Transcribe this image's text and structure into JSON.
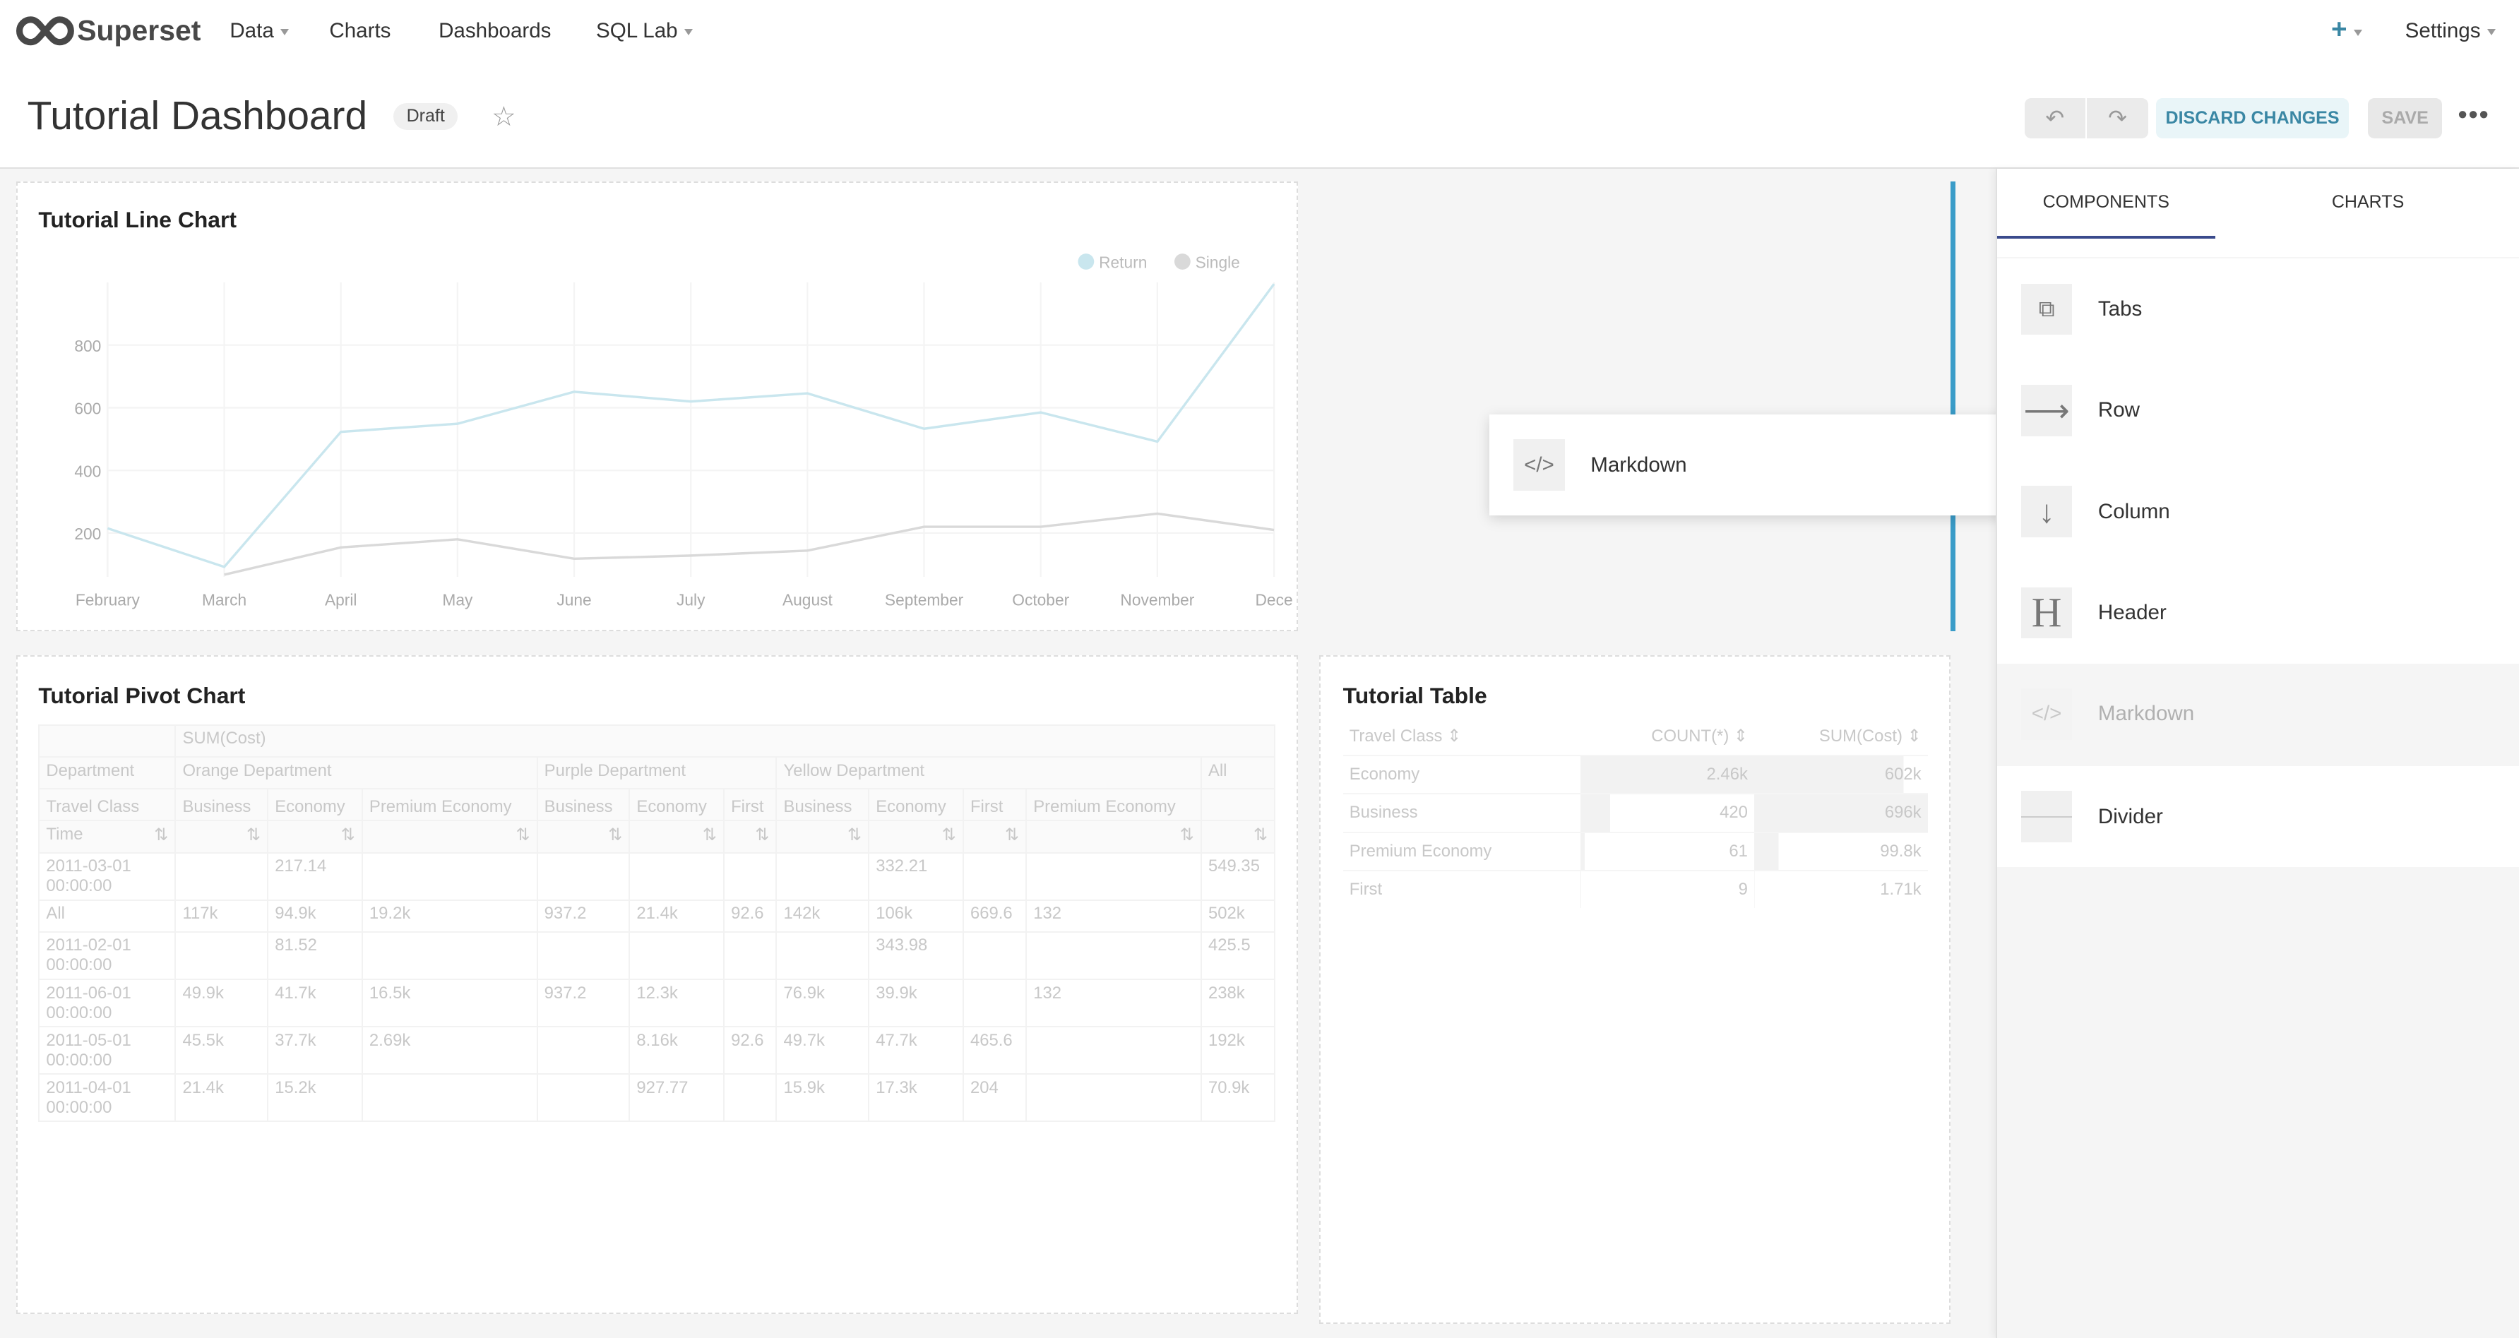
{
  "nav": {
    "brand": "Superset",
    "items": [
      {
        "label": "Data",
        "dropdown": true
      },
      {
        "label": "Charts"
      },
      {
        "label": "Dashboards"
      },
      {
        "label": "SQL Lab",
        "dropdown": true
      }
    ],
    "settings": "Settings",
    "accent": "#20a7c9"
  },
  "header": {
    "title": "Tutorial Dashboard",
    "badge": "Draft",
    "discard": "DISCARD CHANGES",
    "save": "SAVE"
  },
  "line_chart": {
    "title": "Tutorial Line Chart"
  },
  "chart_data": {
    "type": "line",
    "legend_position": "top-right",
    "ylim": [
      0,
      1000
    ],
    "y_ticks": [
      200,
      400,
      600,
      800
    ],
    "categories": [
      "February",
      "March",
      "April",
      "May",
      "June",
      "July",
      "August",
      "September",
      "October",
      "November",
      "Dece"
    ],
    "series": [
      {
        "name": "Return",
        "color": "#c9e6ee",
        "values": [
          215,
          92,
          523,
          549,
          651,
          620,
          646,
          533,
          585,
          492,
          995
        ]
      },
      {
        "name": "Single",
        "color": "#d9d9d9",
        "values": [
          null,
          67,
          154,
          180,
          118,
          128,
          144,
          220,
          220,
          262,
          210
        ]
      }
    ]
  },
  "drag_preview": {
    "label": "Markdown"
  },
  "pivot": {
    "title": "Tutorial Pivot Chart",
    "metric": "SUM(Cost)",
    "dept_label": "Department",
    "departments": [
      "Orange Department",
      "Purple Department",
      "Yellow Department",
      "All"
    ],
    "class_label": "Travel Class",
    "classes": [
      "Business",
      "Economy",
      "Premium Economy",
      "Business",
      "Economy",
      "First",
      "Business",
      "Economy",
      "First",
      "Premium Economy",
      ""
    ],
    "time_label": "Time",
    "rows": [
      {
        "label": "2011-03-01 00:00:00",
        "values": [
          "",
          "217.14",
          "",
          "",
          "",
          "",
          "",
          "332.21",
          "",
          "",
          "549.35"
        ]
      },
      {
        "label": "All",
        "values": [
          "117k",
          "94.9k",
          "19.2k",
          "937.2",
          "21.4k",
          "92.6",
          "142k",
          "106k",
          "669.6",
          "132",
          "502k"
        ]
      },
      {
        "label": "2011-02-01 00:00:00",
        "values": [
          "",
          "81.52",
          "",
          "",
          "",
          "",
          "",
          "343.98",
          "",
          "",
          "425.5"
        ]
      },
      {
        "label": "2011-06-01 00:00:00",
        "values": [
          "49.9k",
          "41.7k",
          "16.5k",
          "937.2",
          "12.3k",
          "",
          "76.9k",
          "39.9k",
          "",
          "132",
          "238k"
        ]
      },
      {
        "label": "2011-05-01 00:00:00",
        "values": [
          "45.5k",
          "37.7k",
          "2.69k",
          "",
          "8.16k",
          "92.6",
          "49.7k",
          "47.7k",
          "465.6",
          "",
          "192k"
        ]
      },
      {
        "label": "2011-04-01 00:00:00",
        "values": [
          "21.4k",
          "15.2k",
          "",
          "",
          "927.77",
          "",
          "15.9k",
          "17.3k",
          "204",
          "",
          "70.9k"
        ]
      }
    ]
  },
  "table": {
    "title": "Tutorial Table",
    "columns": [
      "Travel Class",
      "COUNT(*)",
      "SUM(Cost)"
    ],
    "rows": [
      [
        "Economy",
        "2.46k",
        "602k"
      ],
      [
        "Business",
        "420",
        "696k"
      ],
      [
        "Premium Economy",
        "61",
        "99.8k"
      ],
      [
        "First",
        "9",
        "1.71k"
      ]
    ],
    "count_fraction": [
      1,
      0.17,
      0.025,
      0.004
    ],
    "sum_fraction": [
      0.86,
      1,
      0.14,
      0.002
    ]
  },
  "sidebar": {
    "tabs": [
      "COMPONENTS",
      "CHARTS"
    ],
    "active_tab": 0,
    "items": [
      {
        "label": "Tabs",
        "icon": "tabs-icon"
      },
      {
        "label": "Row",
        "icon": "row-icon"
      },
      {
        "label": "Column",
        "icon": "column-icon"
      },
      {
        "label": "Header",
        "icon": "header-icon"
      },
      {
        "label": "Markdown",
        "icon": "markdown-icon"
      },
      {
        "label": "Divider",
        "icon": "divider-icon"
      }
    ]
  }
}
